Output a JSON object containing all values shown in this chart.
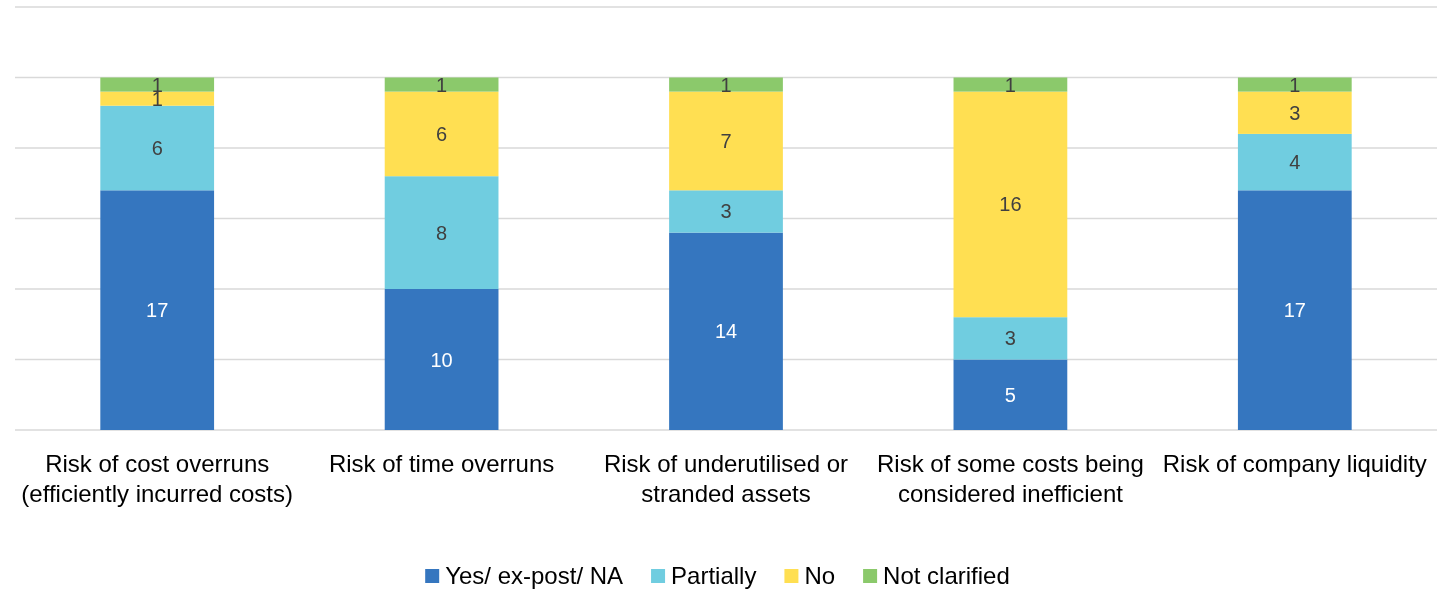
{
  "chart_data": {
    "type": "bar",
    "stacked": true,
    "categories": [
      "Risk of cost overruns (efficiently incurred costs)",
      "Risk of time overruns",
      "Risk of underutilised or stranded assets",
      "Risk of some costs being considered inefficient",
      "Risk of company liquidity"
    ],
    "series": [
      {
        "name": "Yes/ ex-post/ NA",
        "color": "#3576bf",
        "values": [
          17,
          10,
          14,
          5,
          17
        ]
      },
      {
        "name": "Partially",
        "color": "#70cde0",
        "values": [
          6,
          8,
          3,
          3,
          4
        ]
      },
      {
        "name": "No",
        "color": "#ffdf52",
        "values": [
          1,
          6,
          7,
          16,
          3
        ]
      },
      {
        "name": "Not clarified",
        "color": "#8bc96b",
        "values": [
          1,
          1,
          1,
          1,
          1
        ]
      }
    ],
    "ylim": [
      0,
      30
    ],
    "yticks": [
      {
        "value": 0,
        "label": null
      },
      {
        "value": 5,
        "label": null
      },
      {
        "value": 10,
        "label": null
      },
      {
        "value": 15,
        "label": null
      },
      {
        "value": 20,
        "label": null
      },
      {
        "value": 25,
        "label": null
      },
      {
        "value": 30,
        "label": null
      }
    ],
    "grid": "y",
    "tick_labels": "x",
    "data_labels": true,
    "legend": "bottom"
  }
}
